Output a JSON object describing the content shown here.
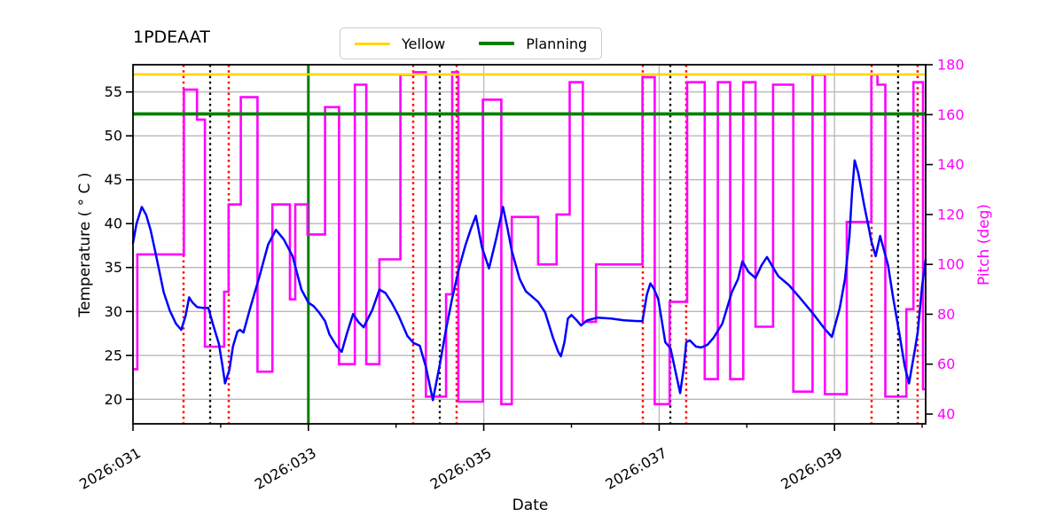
{
  "legend": {
    "items": [
      {
        "label": "Yellow",
        "color": "#ffd700"
      },
      {
        "label": "Planning",
        "color": "#008000"
      }
    ]
  },
  "chart_data": {
    "type": "line",
    "title": "1PDEAAT",
    "xlabel": "Date",
    "ylabel_left": "Temperature ( ° C )",
    "ylabel_right": "Pitch (deg)",
    "grid": true,
    "x_axis": {
      "range": [
        31.0,
        40.04
      ],
      "major_ticks": [
        {
          "value": 31,
          "label": "2026:031"
        },
        {
          "value": 33,
          "label": "2026:033"
        },
        {
          "value": 35,
          "label": "2026:035"
        },
        {
          "value": 37,
          "label": "2026:037"
        },
        {
          "value": 39,
          "label": "2026:039"
        }
      ],
      "minor_ticks": [
        32,
        34,
        36,
        38,
        40
      ]
    },
    "y_left": {
      "range": [
        17.2,
        58.1
      ],
      "ticks": [
        20,
        25,
        30,
        35,
        40,
        45,
        50,
        55
      ],
      "color": "#000000"
    },
    "y_right": {
      "range": [
        36.1,
        180
      ],
      "ticks": [
        40,
        60,
        80,
        100,
        120,
        140,
        160,
        180
      ],
      "color": "#ff00ff"
    },
    "limit_lines": [
      {
        "name": "Yellow",
        "value": 57.0,
        "axis": "left",
        "color": "#ffd700",
        "width": 2.6
      },
      {
        "name": "Planning",
        "value": 52.5,
        "axis": "left",
        "color": "#008000",
        "width": 3.8
      }
    ],
    "vlines": [
      {
        "name": "green-solid-vline",
        "style": "solid",
        "color": "#008000",
        "width": 3.0,
        "x": [
          33.0
        ]
      },
      {
        "name": "red-dotted-vline",
        "style": "dotted",
        "color": "#ff0000",
        "width": 2.5,
        "x": [
          31.576,
          32.092,
          34.195,
          34.691,
          36.814,
          37.309,
          39.423,
          39.948
        ]
      },
      {
        "name": "black-dotted-vline",
        "style": "dotted",
        "color": "#000000",
        "width": 2.3,
        "x": [
          31.88,
          34.499,
          37.128,
          39.726
        ]
      }
    ],
    "series": [
      {
        "name": "temperature",
        "axis": "left",
        "color": "#0000ff",
        "width": 2.5,
        "points": [
          [
            31.0,
            37.8
          ],
          [
            31.04,
            40.0
          ],
          [
            31.1,
            41.9
          ],
          [
            31.15,
            41.0
          ],
          [
            31.2,
            39.3
          ],
          [
            31.25,
            37.0
          ],
          [
            31.3,
            34.6
          ],
          [
            31.35,
            32.2
          ],
          [
            31.42,
            30.1
          ],
          [
            31.49,
            28.6
          ],
          [
            31.55,
            27.9
          ],
          [
            31.6,
            29.5
          ],
          [
            31.64,
            31.6
          ],
          [
            31.68,
            31.0
          ],
          [
            31.73,
            30.5
          ],
          [
            31.8,
            30.4
          ],
          [
            31.86,
            30.4
          ],
          [
            31.91,
            28.6
          ],
          [
            31.98,
            26.3
          ],
          [
            32.02,
            23.8
          ],
          [
            32.05,
            21.8
          ],
          [
            32.1,
            23.4
          ],
          [
            32.14,
            26.0
          ],
          [
            32.19,
            27.7
          ],
          [
            32.22,
            27.9
          ],
          [
            32.26,
            27.6
          ],
          [
            32.34,
            30.5
          ],
          [
            32.44,
            33.9
          ],
          [
            32.54,
            37.6
          ],
          [
            32.63,
            39.3
          ],
          [
            32.72,
            38.2
          ],
          [
            32.82,
            36.3
          ],
          [
            32.92,
            32.5
          ],
          [
            33.0,
            31.0
          ],
          [
            33.06,
            30.6
          ],
          [
            33.12,
            29.9
          ],
          [
            33.19,
            28.9
          ],
          [
            33.24,
            27.4
          ],
          [
            33.32,
            26.1
          ],
          [
            33.38,
            25.4
          ],
          [
            33.44,
            27.5
          ],
          [
            33.51,
            29.7
          ],
          [
            33.57,
            28.8
          ],
          [
            33.63,
            28.2
          ],
          [
            33.73,
            30.2
          ],
          [
            33.81,
            32.5
          ],
          [
            33.88,
            32.1
          ],
          [
            33.95,
            31.0
          ],
          [
            34.03,
            29.5
          ],
          [
            34.13,
            27.2
          ],
          [
            34.2,
            26.4
          ],
          [
            34.27,
            26.1
          ],
          [
            34.34,
            23.7
          ],
          [
            34.42,
            19.9
          ],
          [
            34.5,
            24.0
          ],
          [
            34.57,
            28.0
          ],
          [
            34.64,
            31.5
          ],
          [
            34.72,
            35.0
          ],
          [
            34.79,
            37.5
          ],
          [
            34.85,
            39.3
          ],
          [
            34.91,
            40.9
          ],
          [
            34.98,
            37.3
          ],
          [
            35.06,
            34.9
          ],
          [
            35.14,
            38.2
          ],
          [
            35.22,
            41.9
          ],
          [
            35.27,
            39.5
          ],
          [
            35.32,
            36.9
          ],
          [
            35.41,
            33.7
          ],
          [
            35.48,
            32.3
          ],
          [
            35.55,
            31.7
          ],
          [
            35.62,
            31.1
          ],
          [
            35.7,
            29.9
          ],
          [
            35.79,
            27.0
          ],
          [
            35.85,
            25.4
          ],
          [
            35.88,
            24.9
          ],
          [
            35.92,
            26.5
          ],
          [
            35.96,
            29.2
          ],
          [
            36.0,
            29.6
          ],
          [
            36.06,
            29.0
          ],
          [
            36.11,
            28.4
          ],
          [
            36.18,
            29.0
          ],
          [
            36.3,
            29.3
          ],
          [
            36.45,
            29.2
          ],
          [
            36.6,
            29.0
          ],
          [
            36.75,
            28.9
          ],
          [
            36.81,
            28.9
          ],
          [
            36.86,
            31.9
          ],
          [
            36.9,
            33.2
          ],
          [
            36.94,
            32.6
          ],
          [
            36.99,
            31.4
          ],
          [
            37.03,
            29.0
          ],
          [
            37.07,
            26.5
          ],
          [
            37.13,
            25.8
          ],
          [
            37.19,
            23.0
          ],
          [
            37.24,
            20.7
          ],
          [
            37.28,
            23.5
          ],
          [
            37.31,
            26.5
          ],
          [
            37.35,
            26.7
          ],
          [
            37.42,
            26.0
          ],
          [
            37.48,
            25.9
          ],
          [
            37.55,
            26.2
          ],
          [
            37.62,
            27.0
          ],
          [
            37.72,
            28.6
          ],
          [
            37.83,
            32.2
          ],
          [
            37.9,
            33.7
          ],
          [
            37.95,
            35.7
          ],
          [
            38.02,
            34.5
          ],
          [
            38.1,
            33.8
          ],
          [
            38.17,
            35.3
          ],
          [
            38.23,
            36.2
          ],
          [
            38.3,
            35.0
          ],
          [
            38.36,
            34.0
          ],
          [
            38.48,
            33.0
          ],
          [
            38.61,
            31.5
          ],
          [
            38.76,
            29.7
          ],
          [
            38.89,
            28.0
          ],
          [
            38.97,
            27.1
          ],
          [
            39.06,
            30.4
          ],
          [
            39.12,
            33.7
          ],
          [
            39.17,
            38.5
          ],
          [
            39.2,
            43.5
          ],
          [
            39.23,
            47.2
          ],
          [
            39.27,
            45.8
          ],
          [
            39.34,
            42.0
          ],
          [
            39.39,
            39.6
          ],
          [
            39.42,
            38.0
          ],
          [
            39.47,
            36.3
          ],
          [
            39.52,
            38.6
          ],
          [
            39.61,
            35.3
          ],
          [
            39.67,
            31.5
          ],
          [
            39.74,
            27.5
          ],
          [
            39.8,
            23.8
          ],
          [
            39.85,
            21.8
          ],
          [
            39.92,
            25.8
          ],
          [
            39.95,
            27.7
          ],
          [
            40.0,
            32.9
          ],
          [
            40.04,
            35.9
          ]
        ]
      },
      {
        "name": "pitch",
        "axis": "right",
        "color": "#ff00ff",
        "width": 2.6,
        "steps": [
          [
            31.0,
            31.05,
            58
          ],
          [
            31.05,
            31.58,
            104
          ],
          [
            31.58,
            31.73,
            170
          ],
          [
            31.73,
            31.82,
            158
          ],
          [
            31.82,
            32.04,
            67
          ],
          [
            32.04,
            32.09,
            89
          ],
          [
            32.09,
            32.23,
            124
          ],
          [
            32.23,
            32.42,
            167
          ],
          [
            32.42,
            32.59,
            57
          ],
          [
            32.59,
            32.79,
            124
          ],
          [
            32.79,
            32.85,
            86
          ],
          [
            32.85,
            32.99,
            124
          ],
          [
            32.99,
            33.19,
            112
          ],
          [
            33.19,
            33.35,
            163
          ],
          [
            33.35,
            33.53,
            60
          ],
          [
            33.53,
            33.66,
            172
          ],
          [
            33.66,
            33.81,
            60
          ],
          [
            33.81,
            34.05,
            102
          ],
          [
            34.05,
            34.2,
            176
          ],
          [
            34.2,
            34.34,
            177
          ],
          [
            34.34,
            34.57,
            47
          ],
          [
            34.57,
            34.64,
            88
          ],
          [
            34.64,
            34.71,
            177
          ],
          [
            34.71,
            34.99,
            45
          ],
          [
            34.99,
            35.2,
            166
          ],
          [
            35.2,
            35.32,
            44
          ],
          [
            35.32,
            35.62,
            119
          ],
          [
            35.62,
            35.83,
            100
          ],
          [
            35.83,
            35.98,
            120
          ],
          [
            35.98,
            36.13,
            173
          ],
          [
            36.13,
            36.28,
            77
          ],
          [
            36.28,
            36.81,
            100
          ],
          [
            36.81,
            36.95,
            175
          ],
          [
            36.95,
            37.12,
            44
          ],
          [
            37.12,
            37.32,
            85
          ],
          [
            37.32,
            37.52,
            173
          ],
          [
            37.52,
            37.67,
            54
          ],
          [
            37.67,
            37.81,
            173
          ],
          [
            37.81,
            37.96,
            54
          ],
          [
            37.96,
            38.1,
            173
          ],
          [
            38.1,
            38.3,
            75
          ],
          [
            38.3,
            38.53,
            172
          ],
          [
            38.53,
            38.75,
            49
          ],
          [
            38.75,
            38.89,
            176
          ],
          [
            38.89,
            39.14,
            48
          ],
          [
            39.14,
            39.42,
            117
          ],
          [
            39.42,
            39.49,
            176
          ],
          [
            39.49,
            39.58,
            172
          ],
          [
            39.58,
            39.82,
            47
          ],
          [
            39.82,
            39.9,
            82
          ],
          [
            39.9,
            40.01,
            173
          ],
          [
            40.01,
            40.04,
            50
          ]
        ]
      }
    ]
  }
}
